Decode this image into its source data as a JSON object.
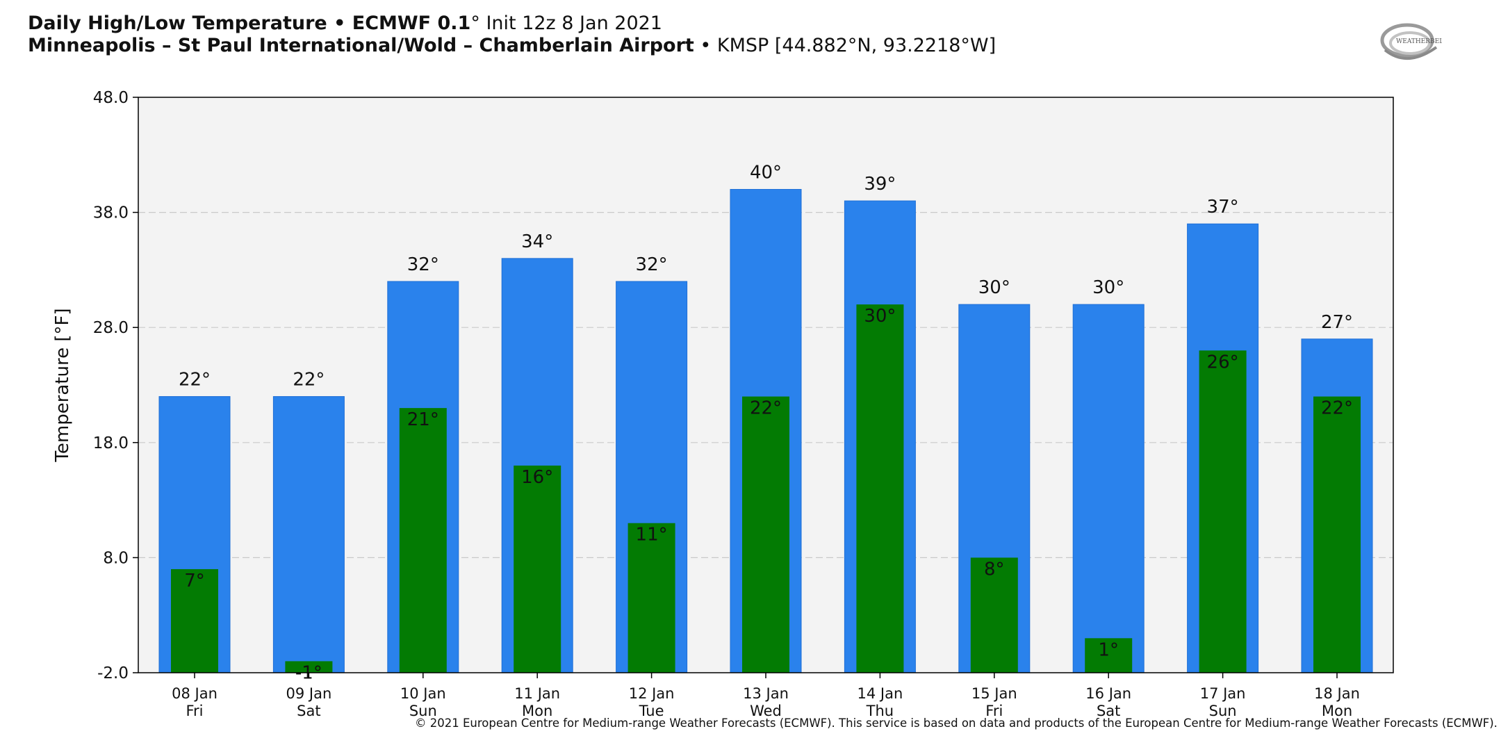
{
  "header": {
    "title_bold": "Daily High/Low Temperature • ECMWF 0.1",
    "title_rest": "° Init 12z 8 Jan 2021",
    "station_bold": "Minneapolis – St Paul International/Wold – Chamberlain Airport",
    "station_rest": " • KMSP [44.882°N, 93.2218°W]"
  },
  "logo": {
    "icon": "weatherbell-logo",
    "text": "WEATHERBELL"
  },
  "footer": "© 2021 European Centre for Medium-range Weather Forecasts (ECMWF). This service is based on data and products of the European Centre for Medium-range Weather Forecasts (ECMWF).",
  "chart_data": {
    "type": "bar",
    "ylabel": "Temperature [°F]",
    "ylim": [
      -2,
      48
    ],
    "yticks": [
      "-2.0",
      "8.0",
      "18.0",
      "28.0",
      "38.0",
      "48.0"
    ],
    "ytick_values": [
      -2,
      8,
      18,
      28,
      38,
      48
    ],
    "grid": true,
    "categories": [
      [
        "08 Jan",
        "Fri"
      ],
      [
        "09 Jan",
        "Sat"
      ],
      [
        "10 Jan",
        "Sun"
      ],
      [
        "11 Jan",
        "Mon"
      ],
      [
        "12 Jan",
        "Tue"
      ],
      [
        "13 Jan",
        "Wed"
      ],
      [
        "14 Jan",
        "Thu"
      ],
      [
        "15 Jan",
        "Fri"
      ],
      [
        "16 Jan",
        "Sat"
      ],
      [
        "17 Jan",
        "Sun"
      ],
      [
        "18 Jan",
        "Mon"
      ]
    ],
    "series": [
      {
        "values": [
          22,
          22,
          32,
          34,
          32,
          40,
          39,
          30,
          30,
          37,
          27
        ],
        "labels": [
          "22°",
          "22°",
          "32°",
          "34°",
          "32°",
          "40°",
          "39°",
          "30°",
          "30°",
          "37°",
          "27°"
        ],
        "color": "#2a82ec"
      },
      {
        "values": [
          7,
          -1,
          21,
          16,
          11,
          22,
          30,
          8,
          1,
          26,
          22
        ],
        "labels": [
          "7°",
          "-1°",
          "21°",
          "16°",
          "11°",
          "22°",
          "30°",
          "8°",
          "1°",
          "26°",
          "22°"
        ],
        "color": "#037b03"
      }
    ],
    "plot_background": "#f3f3f3"
  }
}
